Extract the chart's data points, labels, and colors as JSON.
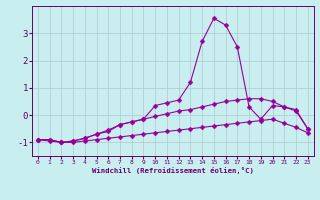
{
  "x": [
    0,
    1,
    2,
    3,
    4,
    5,
    6,
    7,
    8,
    9,
    10,
    11,
    12,
    13,
    14,
    15,
    16,
    17,
    18,
    19,
    20,
    21,
    22,
    23
  ],
  "line_bottom": [
    -0.9,
    -0.95,
    -1.0,
    -1.0,
    -0.95,
    -0.9,
    -0.85,
    -0.8,
    -0.75,
    -0.7,
    -0.65,
    -0.6,
    -0.55,
    -0.5,
    -0.45,
    -0.4,
    -0.35,
    -0.3,
    -0.25,
    -0.2,
    -0.15,
    -0.3,
    -0.45,
    -0.65
  ],
  "line_spike": [
    -0.9,
    -0.9,
    -1.0,
    -0.95,
    -0.85,
    -0.7,
    -0.6,
    -0.35,
    -0.25,
    -0.15,
    0.35,
    0.45,
    0.55,
    1.2,
    2.7,
    3.55,
    3.3,
    2.5,
    0.3,
    -0.15,
    0.35,
    0.3,
    0.2,
    -0.5
  ],
  "line_mid": [
    -0.9,
    -0.9,
    -1.0,
    -0.95,
    -0.85,
    -0.7,
    -0.55,
    -0.35,
    -0.25,
    -0.15,
    -0.05,
    0.05,
    0.15,
    0.2,
    0.3,
    0.4,
    0.5,
    0.55,
    0.6,
    0.6,
    0.5,
    0.3,
    0.15,
    -0.5
  ],
  "background_color": "#c8eef0",
  "line_color": "#990099",
  "grid_color": "#b0c8cc",
  "xlabel": "Windchill (Refroidissement éolien,°C)",
  "ylim": [
    -1.5,
    4.0
  ],
  "xlim": [
    -0.5,
    23.5
  ],
  "yticks": [
    -1,
    0,
    1,
    2,
    3
  ],
  "xticks": [
    0,
    1,
    2,
    3,
    4,
    5,
    6,
    7,
    8,
    9,
    10,
    11,
    12,
    13,
    14,
    15,
    16,
    17,
    18,
    19,
    20,
    21,
    22,
    23
  ],
  "font_color": "#660066"
}
